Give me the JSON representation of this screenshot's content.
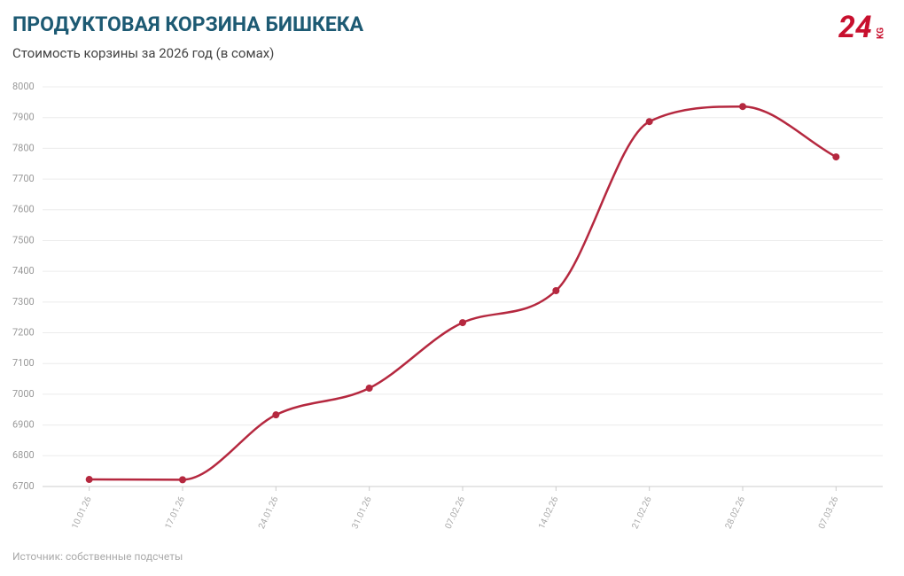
{
  "chart_data": {
    "type": "line",
    "title": "ПРОДУКТОВАЯ КОРЗИНА БИШКЕКА",
    "subtitle": "Стоимость корзины за 2026 год (в сомах)",
    "source": "Источник: собственные подсчеты",
    "logo": {
      "main": "24",
      "suffix": "KG"
    },
    "categories": [
      "10.01.26",
      "17.01.26",
      "24.01.26",
      "31.01.26",
      "07.02.26",
      "14.02.26",
      "21.02.26",
      "28.02.26",
      "07.03.26"
    ],
    "values": [
      6723,
      6722,
      6933,
      7020,
      7233,
      7337,
      7887,
      7936,
      7772
    ],
    "color": "#b5283f",
    "ylim": [
      6700,
      8000
    ],
    "yticks": [
      6700,
      6800,
      6900,
      7000,
      7100,
      7200,
      7300,
      7400,
      7500,
      7600,
      7700,
      7800,
      7900,
      8000
    ],
    "grid": true
  }
}
